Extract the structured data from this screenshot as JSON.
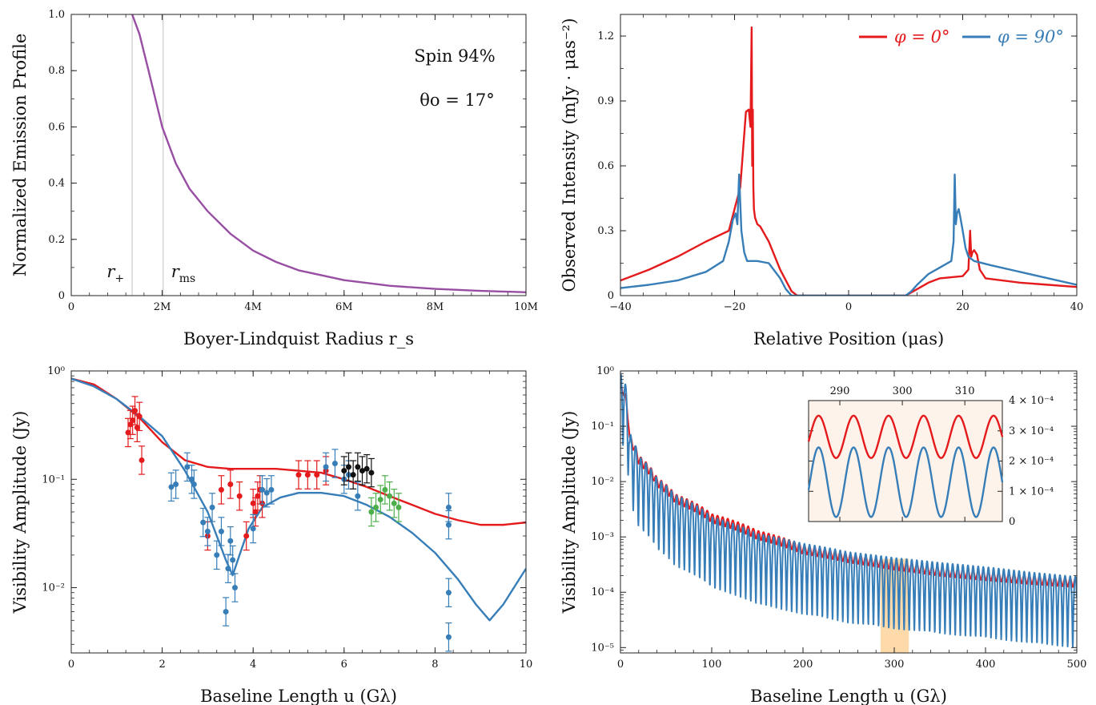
{
  "chart_data": [
    {
      "type": "line",
      "panel": "top-left",
      "xlabel": "Boyer-Lindquist Radius r_s",
      "ylabel": "Normalized Emission Profile",
      "xlim": [
        0,
        10
      ],
      "ylim": [
        0,
        1
      ],
      "xticks": [
        0,
        2,
        4,
        6,
        8,
        10
      ],
      "xtick_labels": [
        "0",
        "2M",
        "4M",
        "6M",
        "8M",
        "10M"
      ],
      "yticks": [
        0,
        0.2,
        0.4,
        0.6,
        0.8,
        1.0
      ],
      "ytick_labels": [
        "0",
        "0.2",
        "0.4",
        "0.6",
        "0.8",
        "1.0"
      ],
      "colors": {
        "curve": "#984ea3",
        "vline": "#cccccc"
      },
      "vlines": [
        1.34,
        2.02
      ],
      "vline_labels": [
        "r+",
        "rms"
      ],
      "annotations": [
        "Spin 94%",
        "θo = 17°"
      ],
      "series": [
        {
          "x": [
            1.34,
            1.5,
            1.7,
            2.0,
            2.3,
            2.6,
            3.0,
            3.5,
            4.0,
            4.5,
            5.0,
            6.0,
            7.0,
            8.0,
            9.0,
            10.0
          ],
          "values": [
            1.0,
            0.93,
            0.8,
            0.6,
            0.47,
            0.38,
            0.3,
            0.22,
            0.16,
            0.12,
            0.09,
            0.055,
            0.035,
            0.024,
            0.017,
            0.012
          ]
        }
      ]
    },
    {
      "type": "line",
      "panel": "top-right",
      "xlabel": "Relative Position (μas)",
      "ylabel": "Observed Intensity (mJy · μas⁻²)",
      "xlim": [
        -40,
        40
      ],
      "ylim": [
        0,
        1.3
      ],
      "xticks": [
        -40,
        -20,
        0,
        20,
        40
      ],
      "xtick_labels": [
        "−40",
        "−20",
        "0",
        "20",
        "40"
      ],
      "yticks": [
        0,
        0.3,
        0.6,
        0.9,
        1.2
      ],
      "ytick_labels": [
        "0",
        "0.3",
        "0.6",
        "0.9",
        "1.2"
      ],
      "legend_position": "top-right",
      "series": [
        {
          "name": "φ = 0°",
          "color": "#e41a1c",
          "x": [
            -40,
            -35,
            -30,
            -25,
            -21,
            -19,
            -18,
            -17.5,
            -17.2,
            -17.0,
            -16.9,
            -16.8,
            -16.7,
            -16.6,
            -16.4,
            -16.0,
            -15.5,
            -14,
            -12,
            -10,
            -9,
            0,
            10,
            12,
            14,
            16,
            18,
            20,
            21,
            21.3,
            21.5,
            21.7,
            22,
            22.5,
            23,
            24,
            30,
            35,
            40
          ],
          "values": [
            0.07,
            0.12,
            0.18,
            0.25,
            0.3,
            0.5,
            0.85,
            0.86,
            0.78,
            1.24,
            0.6,
            0.86,
            0.5,
            0.4,
            0.36,
            0.33,
            0.32,
            0.25,
            0.12,
            0.02,
            0.0,
            0.0,
            0.0,
            0.03,
            0.06,
            0.08,
            0.085,
            0.09,
            0.12,
            0.3,
            0.18,
            0.2,
            0.21,
            0.19,
            0.12,
            0.08,
            0.06,
            0.05,
            0.04
          ]
        },
        {
          "name": "φ = 90°",
          "color": "#377eb8",
          "x": [
            -40,
            -35,
            -30,
            -25,
            -22,
            -21,
            -20.3,
            -19.8,
            -19.5,
            -19.2,
            -18.8,
            -18.3,
            -17.8,
            -16,
            -14,
            -12,
            -11,
            -10,
            0,
            10,
            11,
            12,
            14,
            16,
            18,
            18.4,
            18.6,
            18.8,
            19.0,
            19.3,
            19.6,
            20,
            20.5,
            21,
            22,
            25,
            30,
            35,
            40
          ],
          "values": [
            0.035,
            0.05,
            0.07,
            0.11,
            0.16,
            0.25,
            0.35,
            0.38,
            0.33,
            0.56,
            0.3,
            0.2,
            0.16,
            0.16,
            0.15,
            0.08,
            0.03,
            0.0,
            0.0,
            0.0,
            0.02,
            0.05,
            0.1,
            0.13,
            0.16,
            0.25,
            0.56,
            0.33,
            0.38,
            0.4,
            0.36,
            0.3,
            0.22,
            0.18,
            0.16,
            0.14,
            0.11,
            0.08,
            0.05
          ]
        }
      ]
    },
    {
      "type": "line",
      "panel": "bottom-left",
      "xlabel": "Baseline Length u (Gλ)",
      "ylabel": "Visibility Amplitude (Jy)",
      "xlim": [
        0,
        10
      ],
      "ylim": [
        0.0025,
        1
      ],
      "yscale": "log",
      "xticks": [
        0,
        2,
        4,
        6,
        8,
        10
      ],
      "xtick_labels": [
        "0",
        "2",
        "4",
        "6",
        "8",
        "10"
      ],
      "yticks": [
        0.01,
        0.1,
        1
      ],
      "ytick_labels": [
        "10⁻²",
        "10⁻¹",
        "10⁰"
      ],
      "series": [
        {
          "color": "#e41a1c",
          "x": [
            0,
            0.5,
            1.0,
            1.5,
            2.0,
            2.5,
            3.0,
            3.5,
            4.0,
            4.5,
            5.0,
            5.5,
            6.0,
            6.5,
            7.0,
            7.5,
            8.0,
            8.5,
            9.0,
            9.5,
            10.0
          ],
          "values": [
            0.85,
            0.75,
            0.55,
            0.37,
            0.22,
            0.15,
            0.13,
            0.125,
            0.125,
            0.125,
            0.12,
            0.115,
            0.1,
            0.085,
            0.07,
            0.058,
            0.048,
            0.042,
            0.038,
            0.038,
            0.04
          ]
        },
        {
          "color": "#377eb8",
          "x": [
            0,
            0.5,
            1.0,
            1.5,
            2.0,
            2.5,
            3.0,
            3.2,
            3.4,
            3.55,
            3.7,
            3.9,
            4.2,
            4.6,
            5.0,
            5.5,
            6.0,
            6.5,
            7.0,
            7.5,
            8.0,
            8.5,
            8.9,
            9.2,
            9.5,
            10.0
          ],
          "values": [
            0.85,
            0.72,
            0.55,
            0.38,
            0.25,
            0.12,
            0.05,
            0.03,
            0.018,
            0.013,
            0.02,
            0.035,
            0.055,
            0.068,
            0.075,
            0.075,
            0.07,
            0.058,
            0.045,
            0.032,
            0.021,
            0.012,
            0.007,
            0.005,
            0.007,
            0.015
          ]
        }
      ],
      "scatter": [
        {
          "color": "#e41a1c",
          "x": [
            1.25,
            1.3,
            1.35,
            1.4,
            1.45,
            1.5,
            1.55,
            3.0,
            3.3,
            3.5,
            3.7,
            3.85,
            4.0,
            4.05,
            4.1,
            4.15,
            4.2,
            5.0,
            5.2,
            5.4,
            5.6
          ],
          "values": [
            0.27,
            0.32,
            0.35,
            0.43,
            0.3,
            0.38,
            0.15,
            0.03,
            0.08,
            0.09,
            0.07,
            0.03,
            0.06,
            0.05,
            0.07,
            0.08,
            0.06,
            0.11,
            0.11,
            0.11,
            0.12
          ]
        },
        {
          "color": "#377eb8",
          "x": [
            2.2,
            2.3,
            2.55,
            2.65,
            2.7,
            2.9,
            3.0,
            3.1,
            3.2,
            3.3,
            3.4,
            3.45,
            3.5,
            3.55,
            3.6,
            4.0,
            4.2,
            4.3,
            4.4,
            5.6,
            5.8,
            6.0,
            6.1,
            6.3,
            8.3,
            8.3,
            8.3,
            8.3
          ],
          "values": [
            0.085,
            0.09,
            0.13,
            0.1,
            0.09,
            0.04,
            0.033,
            0.055,
            0.02,
            0.033,
            0.006,
            0.015,
            0.027,
            0.018,
            0.01,
            0.035,
            0.08,
            0.075,
            0.08,
            0.13,
            0.14,
            0.1,
            0.11,
            0.07,
            0.055,
            0.038,
            0.009,
            0.0035
          ]
        },
        {
          "color": "#111111",
          "x": [
            6.0,
            6.1,
            6.2,
            6.3,
            6.4,
            6.5,
            6.6
          ],
          "values": [
            0.12,
            0.13,
            0.11,
            0.13,
            0.12,
            0.125,
            0.115
          ]
        },
        {
          "color": "#4daf4a",
          "x": [
            6.6,
            6.7,
            6.8,
            6.9,
            7.0,
            7.1,
            7.2
          ],
          "values": [
            0.05,
            0.055,
            0.065,
            0.08,
            0.07,
            0.06,
            0.055
          ]
        }
      ]
    },
    {
      "type": "line",
      "panel": "bottom-right",
      "xlabel": "Baseline Length u (Gλ)",
      "ylabel": "Visibility Amplitude (Jy)",
      "xlim": [
        0,
        500
      ],
      "ylim": [
        8e-06,
        1
      ],
      "yscale": "log",
      "xticks": [
        0,
        100,
        200,
        300,
        400,
        500
      ],
      "xtick_labels": [
        "0",
        "100",
        "200",
        "300",
        "400",
        "500"
      ],
      "yticks": [
        1e-05,
        0.0001,
        0.001,
        0.01,
        0.1,
        1
      ],
      "ytick_labels": [
        "10⁻⁵",
        "10⁻⁴",
        "10⁻³",
        "10⁻²",
        "10⁻¹",
        "10⁰"
      ],
      "highlight_range": [
        285,
        316
      ],
      "colors": {
        "highlight": "#fdbf6f",
        "inset_bg": "#fef3ea"
      },
      "series": [
        {
          "name": "φ = 0°",
          "color": "#e41a1c",
          "envelope_x": [
            2,
            10,
            20,
            40,
            60,
            100,
            150,
            200,
            250,
            300,
            350,
            400,
            450,
            500
          ],
          "envelope_values": [
            0.5,
            0.06,
            0.025,
            0.01,
            0.005,
            0.0022,
            0.0011,
            0.0006,
            0.00042,
            0.00031,
            0.00024,
            0.0002,
            0.00017,
            0.00015
          ]
        },
        {
          "name": "φ = 90°",
          "color": "#377eb8",
          "envelope_x": [
            2,
            10,
            20,
            40,
            60,
            100,
            150,
            200,
            250,
            300,
            350,
            400,
            450,
            500
          ],
          "envelope_values": [
            0.5,
            0.04,
            0.015,
            0.006,
            0.003,
            0.0012,
            0.0006,
            0.0004,
            0.00028,
            0.00022,
            0.00018,
            0.00015,
            0.00012,
            0.0001
          ]
        }
      ],
      "inset": {
        "xlim": [
          285,
          316
        ],
        "ylim": [
          0,
          0.0004
        ],
        "xticks": [
          290,
          300,
          310
        ],
        "xtick_labels": [
          "290",
          "300",
          "310"
        ],
        "yticks": [
          0,
          0.0001,
          0.0002,
          0.0003,
          0.0004
        ],
        "ytick_labels": [
          "0",
          "1 × 10⁻⁴",
          "2 × 10⁻⁴",
          "3 × 10⁻⁴",
          "4 × 10⁻⁴"
        ],
        "series": [
          {
            "color": "#e41a1c",
            "center": 0.00028,
            "amplitude": 7e-05,
            "period": 5.6
          },
          {
            "color": "#377eb8",
            "center": 0.00013,
            "amplitude": 0.000115,
            "period": 5.6
          }
        ]
      }
    }
  ]
}
